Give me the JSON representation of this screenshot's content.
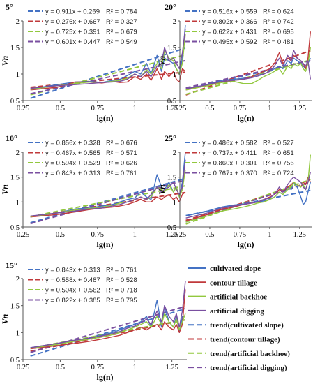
{
  "colors": {
    "cultivated": "#4472c4",
    "contour": "#c0393b",
    "backhoe": "#92c83e",
    "digging": "#7a4fa0"
  },
  "legend": [
    {
      "label": "cultivated slope",
      "style": "solid",
      "color": "#4472c4"
    },
    {
      "label": "contour tillage",
      "style": "solid",
      "color": "#c0393b"
    },
    {
      "label": "artificial backhoe",
      "style": "solid",
      "color": "#92c83e"
    },
    {
      "label": "artificial digging",
      "style": "solid",
      "color": "#7a4fa0"
    },
    {
      "label": "trend(cultivated slope)",
      "style": "dashed",
      "color": "#4472c4"
    },
    {
      "label": "trend(contour tillage)",
      "style": "dashed",
      "color": "#c0393b"
    },
    {
      "label": "trend(artificial backhoe)",
      "style": "dashed",
      "color": "#92c83e"
    },
    {
      "label": "trend(artificial digging)",
      "style": "dashed",
      "color": "#7a4fa0"
    }
  ],
  "chart_data": [
    {
      "type": "line",
      "title": "5°",
      "xlabel": "lg(n)",
      "ylabel": "Vn",
      "xlim": [
        0.25,
        1.35
      ],
      "ylim": [
        0.5,
        2
      ],
      "xticks": [
        "0.25",
        "0.5",
        "0.75",
        "1",
        "1.25"
      ],
      "yticks": [
        "0.5",
        "1",
        "1.5",
        "2"
      ],
      "x": [
        0.3,
        0.48,
        0.6,
        0.7,
        0.78,
        0.85,
        0.9,
        0.95,
        1.0,
        1.04,
        1.08,
        1.11,
        1.15,
        1.18,
        1.2,
        1.23,
        1.26,
        1.28,
        1.3,
        1.32,
        1.34
      ],
      "series": [
        {
          "name": "cultivated slope",
          "values": [
            0.72,
            0.8,
            0.85,
            0.86,
            0.84,
            0.88,
            0.9,
            0.97,
            1.05,
            1.0,
            1.2,
            1.0,
            1.35,
            1.05,
            1.3,
            1.25,
            1.2,
            1.1,
            1.0,
            1.3,
            1.92
          ]
        },
        {
          "name": "contour tillage",
          "values": [
            0.7,
            0.75,
            0.85,
            0.85,
            0.83,
            0.86,
            0.84,
            0.85,
            0.95,
            0.9,
            1.0,
            0.88,
            1.1,
            0.9,
            1.05,
            0.95,
            1.05,
            0.9,
            0.85,
            1.1,
            1.05
          ]
        },
        {
          "name": "artificial backhoe",
          "values": [
            0.71,
            0.78,
            0.82,
            0.85,
            0.84,
            0.86,
            0.88,
            0.92,
            1.0,
            0.95,
            1.08,
            1.0,
            1.2,
            1.1,
            1.45,
            1.3,
            1.25,
            1.1,
            1.0,
            1.2,
            1.75
          ]
        },
        {
          "name": "artificial digging",
          "values": [
            0.73,
            0.78,
            0.8,
            0.82,
            0.84,
            0.85,
            0.86,
            0.9,
            1.0,
            0.95,
            1.05,
            0.95,
            1.15,
            1.2,
            1.5,
            1.25,
            1.3,
            1.2,
            1.1,
            1.4,
            1.85
          ]
        }
      ],
      "trends": [
        {
          "name": "trend(cultivated slope)",
          "equation": "y = 0.911x + 0.269",
          "r2": "R² = 0.784",
          "slope": 0.911,
          "intercept": 0.269
        },
        {
          "name": "trend(contour tillage)",
          "equation": "y = 0.276x + 0.667",
          "r2": "R² = 0.327",
          "slope": 0.276,
          "intercept": 0.667
        },
        {
          "name": "trend(artificial backhoe)",
          "equation": "y = 0.725x + 0.391",
          "r2": "R² = 0.679",
          "slope": 0.725,
          "intercept": 0.391
        },
        {
          "name": "trend(artificial digging)",
          "equation": "y = 0.601x + 0.447",
          "r2": "R² = 0.549",
          "slope": 0.601,
          "intercept": 0.447
        }
      ]
    },
    {
      "type": "line",
      "title": "20°",
      "xlabel": "lg(n)",
      "ylabel": "Vn",
      "xlim": [
        0.25,
        1.35
      ],
      "ylim": [
        0.5,
        2
      ],
      "xticks": [
        "0.25",
        "0.5",
        "0.75",
        "1",
        "1.25"
      ],
      "yticks": [
        "0.5",
        "1",
        "1.5",
        "2"
      ],
      "x": [
        0.3,
        0.48,
        0.6,
        0.7,
        0.78,
        0.85,
        0.9,
        0.95,
        1.0,
        1.04,
        1.08,
        1.11,
        1.15,
        1.18,
        1.2,
        1.23,
        1.26,
        1.28,
        1.3,
        1.32,
        1.34
      ],
      "series": [
        {
          "name": "cultivated slope",
          "values": [
            0.72,
            0.8,
            0.88,
            0.9,
            0.92,
            0.95,
            0.98,
            1.0,
            1.05,
            1.1,
            1.15,
            1.1,
            1.25,
            1.2,
            1.3,
            1.25,
            1.2,
            1.15,
            1.1,
            1.2,
            1.3
          ]
        },
        {
          "name": "contour tillage",
          "values": [
            0.7,
            0.78,
            0.85,
            0.88,
            0.9,
            0.95,
            1.0,
            1.05,
            1.1,
            1.2,
            1.4,
            1.2,
            1.3,
            1.25,
            1.35,
            1.3,
            1.25,
            1.2,
            1.1,
            1.3,
            1.8
          ]
        },
        {
          "name": "artificial backhoe",
          "values": [
            0.7,
            0.78,
            0.84,
            0.86,
            0.82,
            0.82,
            0.88,
            0.95,
            1.0,
            1.05,
            1.1,
            1.0,
            1.15,
            1.1,
            1.2,
            1.15,
            1.2,
            1.1,
            1.05,
            1.2,
            1.5
          ]
        },
        {
          "name": "artificial digging",
          "values": [
            0.72,
            0.8,
            0.86,
            0.88,
            0.9,
            0.93,
            0.96,
            1.0,
            1.05,
            1.15,
            1.3,
            1.15,
            1.35,
            1.25,
            1.45,
            1.3,
            1.25,
            1.2,
            1.15,
            1.25,
            0.9
          ]
        }
      ],
      "trends": [
        {
          "name": "trend(cultivated slope)",
          "equation": "y = 0.516x + 0.559",
          "r2": "R² = 0.624",
          "slope": 0.516,
          "intercept": 0.559
        },
        {
          "name": "trend(contour tillage)",
          "equation": "y = 0.802x + 0.366",
          "r2": "R² = 0.742",
          "slope": 0.802,
          "intercept": 0.366
        },
        {
          "name": "trend(artificial backhoe)",
          "equation": "y = 0.622x + 0.431",
          "r2": "R² = 0.695",
          "slope": 0.622,
          "intercept": 0.431
        },
        {
          "name": "trend(artificial digging)",
          "equation": "y = 0.495x + 0.592",
          "r2": "R² = 0.481",
          "slope": 0.495,
          "intercept": 0.592
        }
      ]
    },
    {
      "type": "line",
      "title": "10°",
      "xlabel": "lg(n)",
      "ylabel": "Vn",
      "xlim": [
        0.25,
        1.35
      ],
      "ylim": [
        0.5,
        2
      ],
      "xticks": [
        "0.25",
        "0.5",
        "0.75",
        "1",
        "1.25"
      ],
      "yticks": [
        "0.5",
        "1",
        "1.5",
        "2"
      ],
      "x": [
        0.3,
        0.48,
        0.6,
        0.7,
        0.78,
        0.85,
        0.9,
        0.95,
        1.0,
        1.04,
        1.08,
        1.11,
        1.15,
        1.18,
        1.2,
        1.23,
        1.26,
        1.28,
        1.3,
        1.32,
        1.34
      ],
      "series": [
        {
          "name": "cultivated slope",
          "values": [
            0.7,
            0.78,
            0.86,
            0.88,
            0.92,
            0.95,
            1.0,
            1.05,
            1.08,
            1.2,
            1.1,
            1.05,
            1.55,
            1.3,
            1.25,
            1.4,
            1.2,
            1.3,
            1.1,
            1.4,
            2.0
          ]
        },
        {
          "name": "contour tillage",
          "values": [
            0.7,
            0.75,
            0.8,
            0.85,
            0.88,
            0.9,
            0.92,
            0.95,
            1.0,
            1.05,
            1.0,
            1.0,
            1.1,
            1.05,
            1.1,
            1.15,
            1.05,
            1.1,
            1.0,
            1.15,
            1.2
          ]
        },
        {
          "name": "artificial backhoe",
          "values": [
            0.71,
            0.78,
            0.84,
            0.87,
            0.9,
            0.93,
            0.98,
            1.0,
            1.05,
            1.1,
            1.05,
            1.1,
            1.3,
            1.25,
            1.2,
            1.35,
            1.2,
            1.3,
            1.1,
            1.25,
            1.65
          ]
        },
        {
          "name": "artificial digging",
          "values": [
            0.72,
            0.78,
            0.82,
            0.86,
            0.88,
            0.92,
            0.95,
            1.0,
            1.05,
            1.1,
            1.05,
            1.15,
            1.3,
            1.2,
            1.25,
            1.3,
            1.4,
            1.25,
            1.15,
            1.3,
            1.85
          ]
        }
      ],
      "trends": [
        {
          "name": "trend(cultivated slope)",
          "equation": "y = 0.856x + 0.328",
          "r2": "R² = 0.676",
          "slope": 0.856,
          "intercept": 0.328
        },
        {
          "name": "trend(contour tillage)",
          "equation": "y = 0.467x + 0.565",
          "r2": "R² = 0.571",
          "slope": 0.467,
          "intercept": 0.565
        },
        {
          "name": "trend(artificial backhoe)",
          "equation": "y = 0.594x + 0.529",
          "r2": "R² = 0.626",
          "slope": 0.594,
          "intercept": 0.529
        },
        {
          "name": "trend(artificial digging)",
          "equation": "y = 0.843x + 0.313",
          "r2": "R² = 0.761",
          "slope": 0.843,
          "intercept": 0.313
        }
      ]
    },
    {
      "type": "line",
      "title": "25°",
      "xlabel": "lg(n)",
      "ylabel": "Vn",
      "xlim": [
        0.25,
        1.35
      ],
      "ylim": [
        0.5,
        2
      ],
      "xticks": [
        "0.25",
        "0.5",
        "0.75",
        "1",
        "1.25"
      ],
      "yticks": [
        "0.5",
        "1",
        "1.5",
        "2"
      ],
      "x": [
        0.3,
        0.48,
        0.6,
        0.7,
        0.78,
        0.85,
        0.9,
        0.95,
        1.0,
        1.04,
        1.08,
        1.11,
        1.15,
        1.18,
        1.2,
        1.23,
        1.26,
        1.28,
        1.3,
        1.32,
        1.34
      ],
      "series": [
        {
          "name": "cultivated slope",
          "values": [
            0.72,
            0.82,
            0.9,
            0.94,
            0.96,
            0.98,
            1.0,
            1.02,
            1.05,
            1.1,
            1.2,
            1.15,
            1.3,
            1.25,
            1.4,
            1.3,
            1.1,
            0.95,
            1.0,
            1.2,
            1.4
          ]
        },
        {
          "name": "contour tillage",
          "values": [
            0.62,
            0.75,
            0.85,
            0.9,
            0.95,
            0.98,
            1.0,
            1.05,
            1.1,
            1.15,
            1.25,
            1.2,
            1.3,
            1.35,
            1.4,
            1.35,
            1.3,
            1.4,
            1.35,
            1.5,
            1.4
          ]
        },
        {
          "name": "artificial backhoe",
          "values": [
            0.6,
            0.72,
            0.82,
            0.86,
            0.9,
            0.94,
            0.98,
            1.0,
            1.05,
            1.1,
            1.2,
            1.15,
            1.25,
            1.3,
            1.4,
            1.35,
            1.3,
            1.35,
            1.25,
            1.4,
            1.95
          ]
        },
        {
          "name": "artificial digging",
          "values": [
            0.68,
            0.78,
            0.88,
            0.92,
            0.95,
            0.98,
            1.0,
            1.05,
            1.08,
            1.15,
            1.3,
            1.2,
            1.35,
            1.45,
            1.5,
            1.45,
            1.4,
            1.3,
            1.25,
            1.4,
            1.6
          ]
        }
      ],
      "trends": [
        {
          "name": "trend(cultivated slope)",
          "equation": "y = 0.486x + 0.582",
          "r2": "R² = 0.527",
          "slope": 0.486,
          "intercept": 0.582
        },
        {
          "name": "trend(contour tillage)",
          "equation": "y = 0.737x + 0.411",
          "r2": "R² = 0.651",
          "slope": 0.737,
          "intercept": 0.411
        },
        {
          "name": "trend(artificial backhoe)",
          "equation": "y = 0.860x + 0.301",
          "r2": "R² = 0.756",
          "slope": 0.86,
          "intercept": 0.301
        },
        {
          "name": "trend(artificial digging)",
          "equation": "y = 0.767x + 0.370",
          "r2": "R² = 0.724",
          "slope": 0.767,
          "intercept": 0.37
        }
      ]
    },
    {
      "type": "line",
      "title": "15°",
      "xlabel": "lg(n)",
      "ylabel": "Vn",
      "xlim": [
        0.25,
        1.35
      ],
      "ylim": [
        0.5,
        2
      ],
      "xticks": [
        "0.25",
        "0.5",
        "0.75",
        "1",
        "1.25"
      ],
      "yticks": [
        "0.5",
        "1",
        "1.5",
        "2"
      ],
      "x": [
        0.3,
        0.48,
        0.6,
        0.7,
        0.78,
        0.85,
        0.9,
        0.95,
        1.0,
        1.04,
        1.08,
        1.11,
        1.15,
        1.18,
        1.2,
        1.23,
        1.26,
        1.28,
        1.3,
        1.32,
        1.34
      ],
      "series": [
        {
          "name": "cultivated slope",
          "values": [
            0.72,
            0.8,
            0.86,
            0.9,
            0.95,
            1.0,
            1.05,
            1.1,
            1.15,
            1.2,
            1.3,
            1.1,
            1.6,
            1.1,
            1.5,
            1.2,
            1.1,
            1.3,
            1.0,
            1.3,
            1.3
          ]
        },
        {
          "name": "contour tillage",
          "values": [
            0.7,
            0.76,
            0.8,
            0.84,
            0.88,
            0.92,
            0.95,
            1.0,
            1.05,
            1.1,
            1.05,
            1.1,
            1.15,
            1.05,
            1.2,
            1.1,
            1.05,
            1.15,
            1.0,
            1.15,
            1.8
          ]
        },
        {
          "name": "artificial backhoe",
          "values": [
            0.71,
            0.78,
            0.84,
            0.88,
            0.92,
            0.96,
            1.0,
            1.05,
            1.1,
            1.15,
            1.2,
            1.1,
            1.3,
            1.15,
            1.35,
            1.2,
            1.1,
            1.25,
            1.05,
            1.2,
            1.35
          ]
        },
        {
          "name": "artificial digging",
          "values": [
            0.72,
            0.8,
            0.86,
            0.9,
            0.94,
            0.98,
            1.02,
            1.08,
            1.12,
            1.18,
            1.25,
            1.15,
            1.4,
            1.2,
            1.5,
            1.3,
            1.2,
            1.35,
            1.1,
            1.4,
            1.95
          ]
        }
      ],
      "trends": [
        {
          "name": "trend(cultivated slope)",
          "equation": "y = 0.843x + 0.313",
          "r2": "R² = 0.761",
          "slope": 0.843,
          "intercept": 0.313
        },
        {
          "name": "trend(contour tillage)",
          "equation": "y = 0.558x + 0.487",
          "r2": "R² = 0.528",
          "slope": 0.558,
          "intercept": 0.487
        },
        {
          "name": "trend(artificial backhoe)",
          "equation": "y = 0.504x + 0.562",
          "r2": "R² = 0.718",
          "slope": 0.504,
          "intercept": 0.562
        },
        {
          "name": "trend(artificial digging)",
          "equation": "y = 0.822x + 0.385",
          "r2": "R² = 0.795",
          "slope": 0.822,
          "intercept": 0.385
        }
      ]
    }
  ]
}
